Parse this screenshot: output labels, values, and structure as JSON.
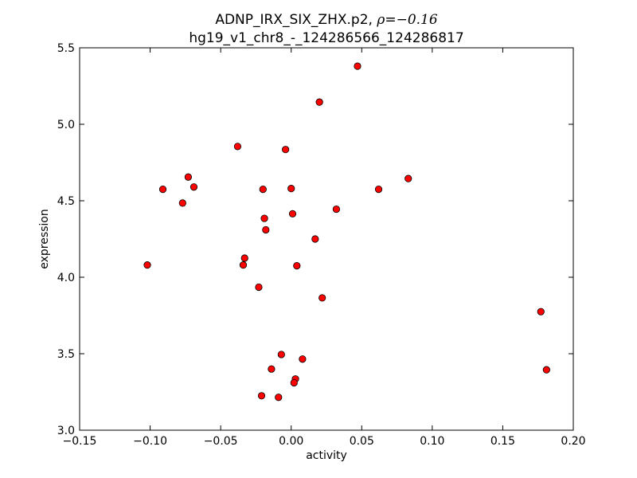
{
  "chart_data": {
    "type": "scatter",
    "title_line1_prefix": "ADNP_IRX_SIX_ZHX.p2, ",
    "title_rho_symbol": "ρ",
    "title_rho_value": "=−0.16",
    "title_line2": "hg19_v1_chr8_-_124286566_124286817",
    "xlabel": "activity",
    "ylabel": "expression",
    "xlim": [
      -0.15,
      0.2
    ],
    "ylim": [
      3.0,
      5.5
    ],
    "xticks": [
      -0.15,
      -0.1,
      -0.05,
      0.0,
      0.05,
      0.1,
      0.15,
      0.2
    ],
    "xtick_labels": [
      "−0.15",
      "−0.10",
      "−0.05",
      "0.00",
      "0.05",
      "0.10",
      "0.15",
      "0.20"
    ],
    "yticks": [
      3.0,
      3.5,
      4.0,
      4.5,
      5.0,
      5.5
    ],
    "ytick_labels": [
      "3.0",
      "3.5",
      "4.0",
      "4.5",
      "5.0",
      "5.5"
    ],
    "marker_color": "#ff0000",
    "marker_edge": "#000000",
    "points": [
      {
        "x": 0.047,
        "y": 5.38
      },
      {
        "x": 0.02,
        "y": 5.145
      },
      {
        "x": -0.038,
        "y": 4.855
      },
      {
        "x": -0.004,
        "y": 4.835
      },
      {
        "x": -0.073,
        "y": 4.655
      },
      {
        "x": 0.083,
        "y": 4.645
      },
      {
        "x": -0.091,
        "y": 4.575
      },
      {
        "x": -0.069,
        "y": 4.59
      },
      {
        "x": -0.02,
        "y": 4.575
      },
      {
        "x": 0.0,
        "y": 4.58
      },
      {
        "x": 0.062,
        "y": 4.575
      },
      {
        "x": -0.077,
        "y": 4.485
      },
      {
        "x": 0.032,
        "y": 4.445
      },
      {
        "x": 0.001,
        "y": 4.415
      },
      {
        "x": -0.019,
        "y": 4.385
      },
      {
        "x": -0.018,
        "y": 4.31
      },
      {
        "x": 0.017,
        "y": 4.25
      },
      {
        "x": -0.033,
        "y": 4.125
      },
      {
        "x": -0.102,
        "y": 4.08
      },
      {
        "x": -0.034,
        "y": 4.08
      },
      {
        "x": 0.004,
        "y": 4.075
      },
      {
        "x": -0.023,
        "y": 3.935
      },
      {
        "x": 0.022,
        "y": 3.865
      },
      {
        "x": 0.177,
        "y": 3.775
      },
      {
        "x": -0.007,
        "y": 3.495
      },
      {
        "x": 0.008,
        "y": 3.465
      },
      {
        "x": -0.014,
        "y": 3.4
      },
      {
        "x": 0.181,
        "y": 3.395
      },
      {
        "x": 0.003,
        "y": 3.335
      },
      {
        "x": 0.002,
        "y": 3.31
      },
      {
        "x": -0.021,
        "y": 3.225
      },
      {
        "x": -0.009,
        "y": 3.215
      }
    ]
  }
}
